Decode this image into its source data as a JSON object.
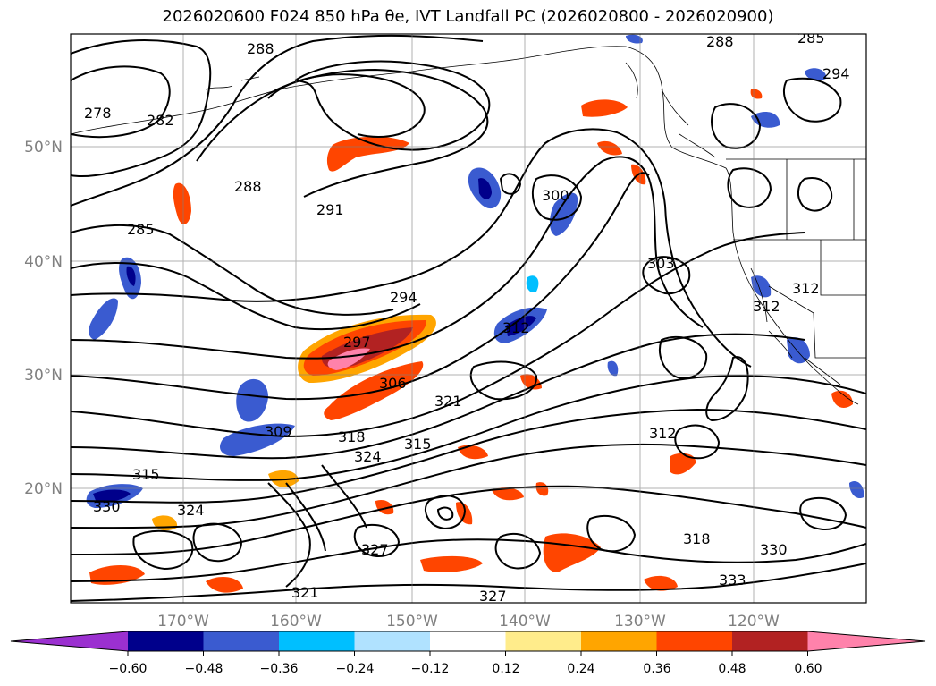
{
  "title_text": "2026020600 F024 850 hPa θe, IVT Landfall PC (2026020800 - 2026020900)",
  "map": {
    "lon_labels": [
      "170°W",
      "160°W",
      "150°W",
      "140°W",
      "130°W",
      "120°W"
    ],
    "lat_labels": [
      "50°N",
      "40°N",
      "30°N",
      "20°N"
    ],
    "contour_labels": [
      "288",
      "282",
      "278",
      "288",
      "291",
      "285",
      "294",
      "297",
      "300",
      "303",
      "306",
      "309",
      "312",
      "312",
      "315",
      "318",
      "321",
      "324",
      "324",
      "327",
      "327",
      "330",
      "330",
      "333",
      "321",
      "312",
      "315",
      "318",
      "294",
      "288",
      "285",
      "312"
    ]
  },
  "colorbar": {
    "tick_labels": [
      "−0.60",
      "−0.48",
      "−0.36",
      "−0.24",
      "−0.12",
      "0.12",
      "0.24",
      "0.36",
      "0.48",
      "0.60"
    ],
    "colors": [
      "#9b30d0",
      "#00008b",
      "#3a5bd0",
      "#00bfff",
      "#b0e2ff",
      "#ffffff",
      "#ffec8b",
      "#ffa500",
      "#ff4500",
      "#b22222",
      "#ff82ab"
    ]
  }
}
